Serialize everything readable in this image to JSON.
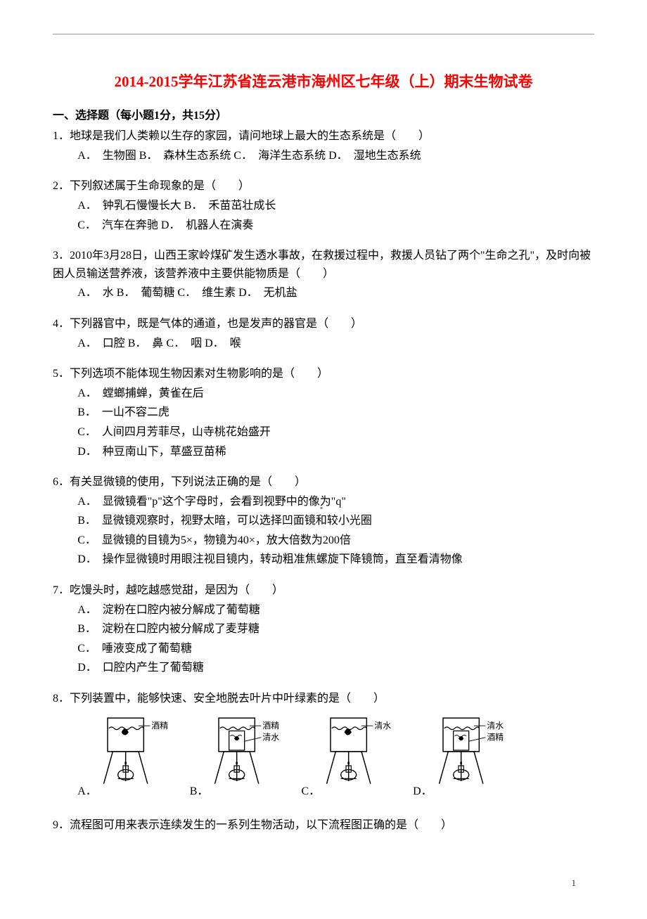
{
  "title": "2014-2015学年江苏省连云港市海州区七年级（上）期末生物试卷",
  "section_header": "一、选择题（每小题1分，共15分）",
  "questions": [
    {
      "num": "1",
      "text": "地球是我们人类赖以生存的家园，请问地球上最大的生态系统是（　　）",
      "option_lines": [
        "A．　生物圈  B．　森林生态系统  C．　海洋生态系统  D．　湿地生态系统"
      ]
    },
    {
      "num": "2",
      "text": "下列叙述属于生命现象的是（　　）",
      "option_lines": [
        "A．　钟乳石慢慢长大  B．　禾苗茁壮成长",
        "C．　汽车在奔驰  D．　机器人在演奏"
      ]
    },
    {
      "num": "3",
      "text": "2010年3月28日，山西王家岭煤矿发生透水事故，在救援过程中，救援人员钻了两个\"生命之孔\"，及时向被困人员输送营养液，该营养液中主要供能物质是（　　）",
      "option_lines": [
        "A．　水  B．　葡萄糖  C．　维生素  D．　无机盐"
      ],
      "noindent": true
    },
    {
      "num": "4",
      "text": "下列器官中，既是气体的通道，也是发声的器官是（　　）",
      "option_lines": [
        "A．　口腔  B．　鼻  C．　咽  D．　喉"
      ]
    },
    {
      "num": "5",
      "text": "下列选项不能体现生物因素对生物影响的是（　　）",
      "option_lines": [
        "A．　螳螂捕蝉，黄雀在后",
        "B．　一山不容二虎",
        "C．　人间四月芳菲尽，山寺桃花始盛开",
        "D．　种豆南山下，草盛豆苗稀"
      ]
    },
    {
      "num": "6",
      "text": "有关显微镜的使用，下列说法正确的是（　　）",
      "option_lines": [
        "A．　显微镜看\"p\"这个字母时，会看到视野中的像为\"q\"",
        "B．　显微镜观察时，视野太暗，可以选择凹面镜和较小光圈",
        "C．　显微镜的目镜为5×，物镜为40×，放大倍数为200倍",
        "D．　操作显微镜时用眼注视目镜内，转动粗准焦螺旋下降镜筒，直至看清物像"
      ]
    },
    {
      "num": "7",
      "text": "吃馒头时，越吃越感觉甜，是因为（　　）",
      "option_lines": [
        "A．　淀粉在口腔内被分解成了葡萄糖",
        "B．　淀粉在口腔内被分解成了麦芽糖",
        "C．　唾液变成了葡萄糖",
        "D．　口腔内产生了葡萄糖"
      ]
    },
    {
      "num": "8",
      "text": "下列装置中，能够快速、安全地脱去叶片中叶绿素的是（　　）",
      "figure": true,
      "labels": [
        "A．",
        "B．",
        "C．",
        "D．"
      ],
      "beaker_labels": [
        {
          "top": "酒精",
          "bottom": ""
        },
        {
          "top": "酒精",
          "bottom": "清水"
        },
        {
          "top": "清水",
          "bottom": ""
        },
        {
          "top": "清水",
          "bottom": "酒精"
        }
      ]
    },
    {
      "num": "9",
      "text": "流程图可用来表示连续发生的一系列生物活动，以下流程图正确的是（　　）"
    }
  ],
  "page_number": "1",
  "colors": {
    "title": "#ff0000",
    "text": "#000000",
    "bg": "#ffffff"
  }
}
